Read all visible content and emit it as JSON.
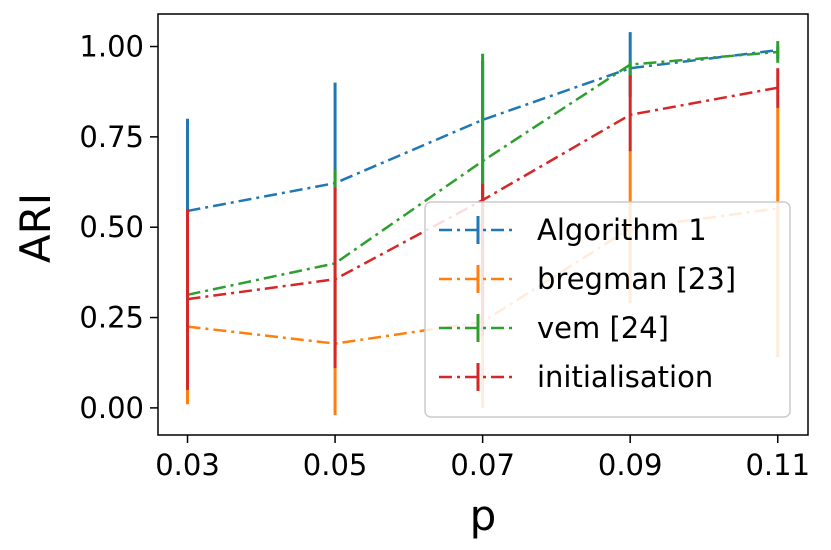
{
  "chart_data": {
    "type": "line",
    "title": "",
    "xlabel": "p",
    "ylabel": "ARI",
    "x": [
      0.03,
      0.05,
      0.07,
      0.09,
      0.11
    ],
    "xticks": [
      "0.03",
      "0.05",
      "0.07",
      "0.09",
      "0.11"
    ],
    "yticks": [
      "0.00",
      "0.25",
      "0.50",
      "0.75",
      "1.00"
    ],
    "ytick_values": [
      0.0,
      0.25,
      0.5,
      0.75,
      1.0
    ],
    "xlim": [
      0.026,
      0.1141
    ],
    "ylim": [
      -0.075,
      1.09
    ],
    "grid": false,
    "legend_position": "lower-right",
    "series": [
      {
        "name": "Algorithm 1",
        "color": "#1f77b4",
        "values": [
          0.545,
          0.622,
          0.797,
          0.94,
          0.99
        ],
        "err_low": [
          0.29,
          0.6,
          0.56,
          0.86,
          0.965
        ],
        "err_high": [
          0.8,
          0.9,
          0.96,
          1.04,
          1.0
        ]
      },
      {
        "name": "bregman [23]",
        "color": "#ff7f0e",
        "values": [
          0.225,
          0.178,
          0.238,
          0.497,
          0.552
        ],
        "err_low": [
          0.01,
          -0.02,
          0.0,
          0.29,
          0.14
        ],
        "err_high": [
          0.44,
          0.37,
          0.48,
          0.71,
          0.83
        ]
      },
      {
        "name": "vem [24]",
        "color": "#2ca02c",
        "values": [
          0.313,
          0.4,
          0.683,
          0.95,
          0.985
        ],
        "err_low": [
          0.1,
          0.14,
          0.39,
          0.91,
          0.955
        ],
        "err_high": [
          0.54,
          0.66,
          0.98,
          0.96,
          1.015
        ]
      },
      {
        "name": "initialisation",
        "color": "#d62728",
        "values": [
          0.301,
          0.356,
          0.575,
          0.811,
          0.886
        ],
        "err_low": [
          0.05,
          0.11,
          0.2,
          0.71,
          0.83
        ],
        "err_high": [
          0.55,
          0.61,
          0.62,
          0.92,
          0.94
        ]
      }
    ]
  }
}
